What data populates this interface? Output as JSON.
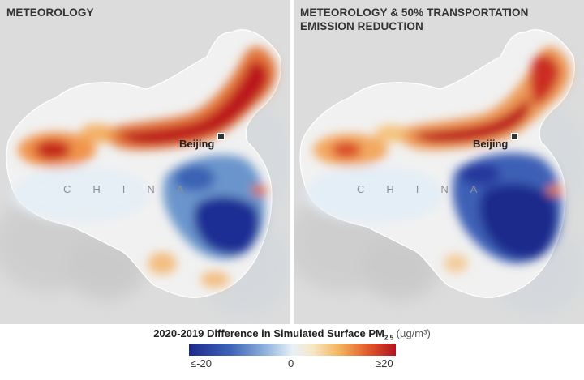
{
  "panels": [
    {
      "title": "METEOROLOGY"
    },
    {
      "title": "METEOROLOGY & 50% TRANSPORTATION\nEMISSION REDUCTION"
    }
  ],
  "map_labels": {
    "city": "Beijing",
    "country": "CHINA"
  },
  "legend": {
    "title": "2020-2019 Difference in Simulated Surface PM",
    "subscript": "2.5",
    "unit": "(µg/m³)",
    "ticks": [
      "≤-20",
      "0",
      "≥20"
    ]
  },
  "colors": {
    "negative": "#1b2a8c",
    "neutral": "#e8f1f7",
    "positive": "#b3131f",
    "background_land": "#d8d8d8"
  }
}
